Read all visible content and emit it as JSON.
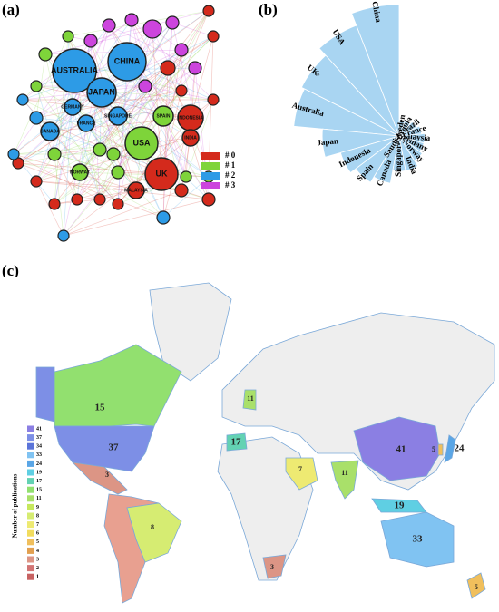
{
  "chart_data": [
    {
      "type": "network",
      "panel_label": "(a)",
      "clusters": [
        {
          "name": "# 0",
          "color": "#d42a1c"
        },
        {
          "name": "# 1",
          "color": "#7ed43a"
        },
        {
          "name": "# 2",
          "color": "#2d9be6"
        },
        {
          "name": "# 3",
          "color": "#cc44dd"
        }
      ],
      "nodes": [
        {
          "label": "CHINA",
          "cluster": 2
        },
        {
          "label": "AUSTRALIA",
          "cluster": 2
        },
        {
          "label": "JAPAN",
          "cluster": 2
        },
        {
          "label": "USA",
          "cluster": 1
        },
        {
          "label": "UK",
          "cluster": 0
        },
        {
          "label": "INDONESIA",
          "cluster": 0
        },
        {
          "label": "SPAIN",
          "cluster": 1
        },
        {
          "label": "SINGAPORE",
          "cluster": 2
        },
        {
          "label": "GERMANY",
          "cluster": 2
        },
        {
          "label": "FRANCE",
          "cluster": 2
        },
        {
          "label": "CANADA",
          "cluster": 2
        },
        {
          "label": "INDIA",
          "cluster": 0
        },
        {
          "label": "NORWAY",
          "cluster": 1
        },
        {
          "label": "MALAYSIA",
          "cluster": 0
        }
      ]
    },
    {
      "type": "polar_bar",
      "panel_label": "(b)",
      "color": "#a9d5f2",
      "rlim": [
        0,
        41
      ],
      "categories": [
        "China",
        "USA",
        "UK",
        "Australia",
        "Japan",
        "Indonesia",
        "Spain",
        "Canada",
        "Singapore",
        "India",
        "Norway",
        "Germany",
        "Malaysia",
        "France",
        "Brazil",
        "Saudi Arabia",
        "Sweden"
      ],
      "values": [
        41,
        37,
        34,
        33,
        24,
        19,
        17,
        15,
        11,
        11,
        9,
        8,
        8,
        7,
        6,
        5,
        5
      ]
    },
    {
      "type": "choropleth",
      "panel_label": "(c)",
      "legend_title": "Number of publications",
      "legend": [
        {
          "value": 41,
          "color": "#8b7fe3"
        },
        {
          "value": 37,
          "color": "#7d8fe6"
        },
        {
          "value": 34,
          "color": "#5b74d9"
        },
        {
          "value": 33,
          "color": "#80c3f2"
        },
        {
          "value": 24,
          "color": "#5aa6e6"
        },
        {
          "value": 19,
          "color": "#5fcfe3"
        },
        {
          "value": 17,
          "color": "#63d2b3"
        },
        {
          "value": 15,
          "color": "#92e06f"
        },
        {
          "value": 11,
          "color": "#a9e06a"
        },
        {
          "value": 9,
          "color": "#c6e85c"
        },
        {
          "value": 8,
          "color": "#d6ec72"
        },
        {
          "value": 7,
          "color": "#eeea72"
        },
        {
          "value": 6,
          "color": "#f2dc5e"
        },
        {
          "value": 5,
          "color": "#f0bf5c"
        },
        {
          "value": 4,
          "color": "#e2a050"
        },
        {
          "value": 3,
          "color": "#dc9585"
        },
        {
          "value": 2,
          "color": "#d27575"
        },
        {
          "value": 1,
          "color": "#c76262"
        }
      ],
      "values": [
        15,
        37,
        3,
        8,
        17,
        11,
        7,
        11,
        41,
        24,
        5,
        19,
        33,
        5,
        3
      ]
    }
  ]
}
